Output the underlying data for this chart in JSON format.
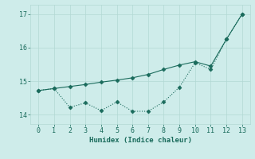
{
  "xlabel": "Humidex (Indice chaleur)",
  "x": [
    0,
    1,
    2,
    3,
    4,
    5,
    6,
    7,
    8,
    9,
    10,
    11,
    12,
    13
  ],
  "line1_y": [
    14.72,
    14.78,
    14.84,
    14.9,
    14.97,
    15.03,
    15.1,
    15.2,
    15.35,
    15.48,
    15.58,
    15.45,
    16.25,
    17.0
  ],
  "line2_y": [
    14.72,
    14.78,
    14.22,
    14.35,
    14.12,
    14.38,
    14.1,
    14.1,
    14.38,
    14.82,
    15.55,
    15.35,
    16.25,
    17.0
  ],
  "color": "#1a6b5c",
  "bg_color": "#ceecea",
  "grid_color": "#b2d8d4",
  "ylim": [
    13.72,
    17.28
  ],
  "yticks": [
    14,
    15,
    16,
    17
  ],
  "xticks": [
    0,
    1,
    2,
    3,
    4,
    5,
    6,
    7,
    8,
    9,
    10,
    11,
    12,
    13
  ],
  "marker": "D",
  "marker_size": 2.5,
  "linewidth": 0.8
}
